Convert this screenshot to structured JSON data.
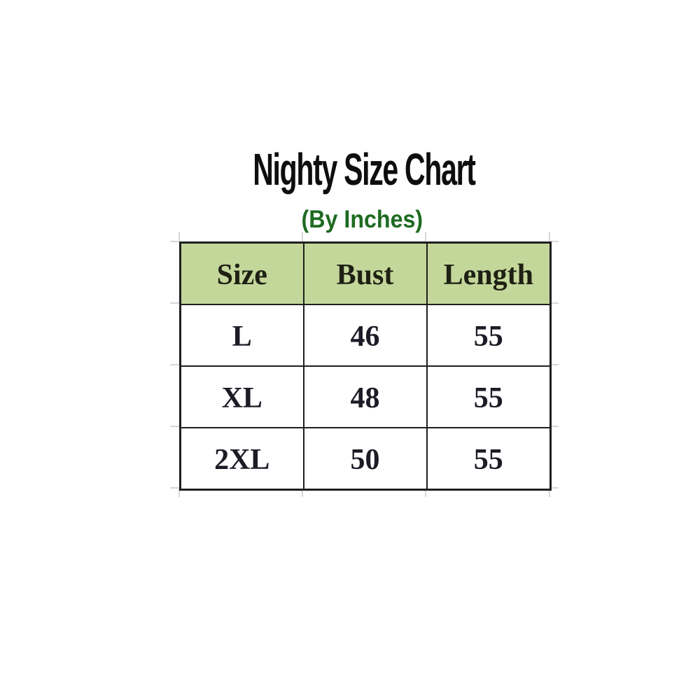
{
  "title": {
    "text": "Nighty Size Chart",
    "color": "#0e0e0e"
  },
  "subtitle": {
    "text": "(By Inches)",
    "color": "#1e6b21"
  },
  "chart_data": {
    "type": "table",
    "title": "Nighty Size Chart",
    "subtitle": "(By Inches)",
    "units": "inches",
    "columns": [
      "Size",
      "Bust",
      "Length"
    ],
    "rows": [
      {
        "size": "L",
        "bust": "46",
        "length": "55"
      },
      {
        "size": "XL",
        "bust": "48",
        "length": "55"
      },
      {
        "size": "2XL",
        "bust": "50",
        "length": "55"
      }
    ],
    "layout_hints": {
      "header_row_highlighted": true,
      "grid": "on",
      "source_style": "spreadsheet screenshot with faint outer gridline ticks"
    }
  },
  "theme": {
    "background": "#ffffff",
    "title": "#0e0e0e",
    "subtitle_green": "#1e6b21",
    "header_bg": "#c4d79b",
    "border": "#1f1f1f",
    "cell_text": "#1c1c26",
    "header_text": "#1e2013",
    "gridline": "#d6d6d6"
  }
}
